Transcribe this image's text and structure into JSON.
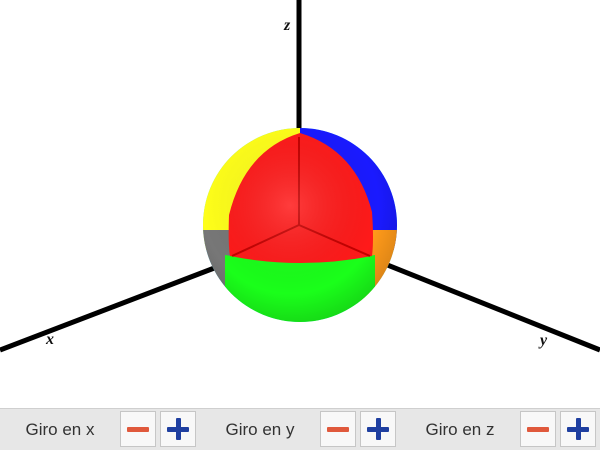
{
  "axes": {
    "z_label": "z",
    "x_label": "x",
    "y_label": "y"
  },
  "controls": [
    {
      "label": "Giro en x",
      "minus_icon": "minus-icon",
      "plus_icon": "plus-icon"
    },
    {
      "label": "Giro en y",
      "minus_icon": "minus-icon",
      "plus_icon": "plus-icon"
    },
    {
      "label": "Giro en z",
      "minus_icon": "minus-icon",
      "plus_icon": "plus-icon"
    }
  ],
  "colors": {
    "minus": "#e0593c",
    "plus": "#1f3fa0",
    "sphere_front": "#ff1a1a",
    "sphere_left": "#ffff1a",
    "sphere_right": "#1a1aff",
    "sphere_bottom": "#1aff1a",
    "sphere_bottom_right": "#ff9a1a",
    "sphere_bottom_left": "#777777",
    "sphere_top_back": "#2fd8ff"
  }
}
